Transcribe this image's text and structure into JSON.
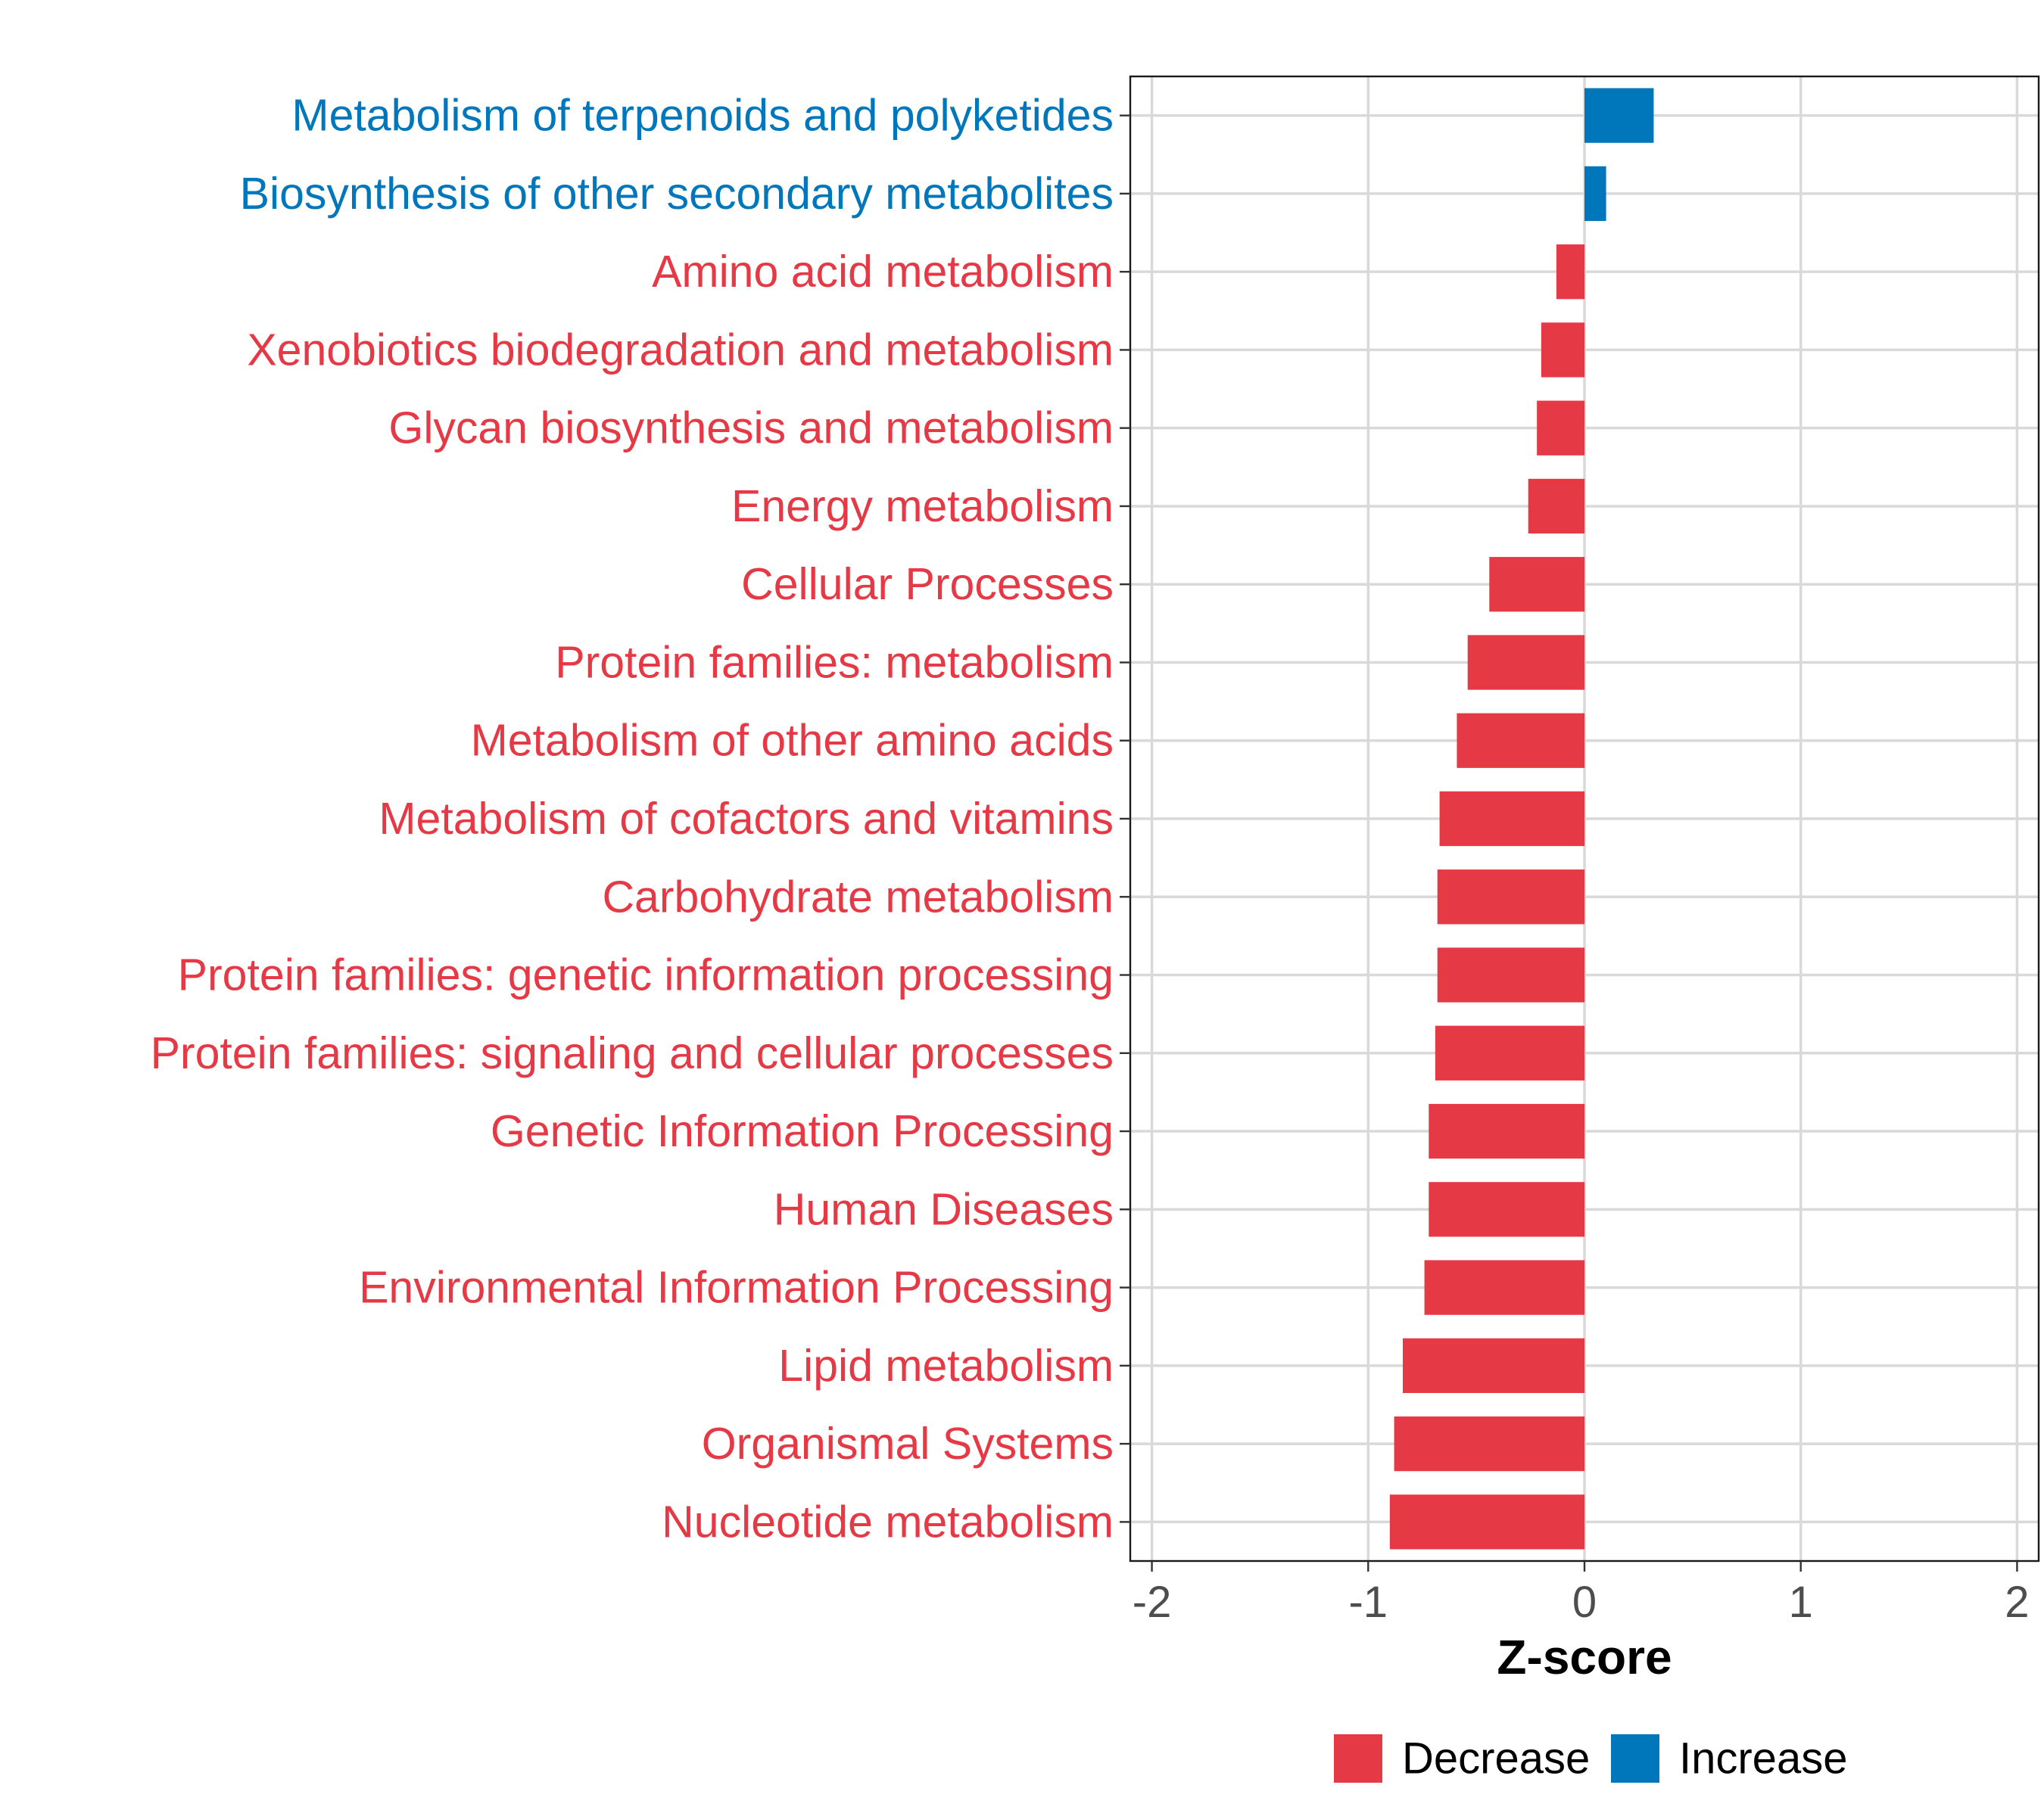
{
  "chart_data": {
    "type": "bar",
    "orientation": "horizontal",
    "title": "",
    "xlabel": "Z-score",
    "ylabel": "",
    "xlim": [
      -2.1,
      2.1
    ],
    "x_ticks": [
      -2,
      -1,
      0,
      1,
      2
    ],
    "x_tick_labels": [
      "-2",
      "-1",
      "0",
      "1",
      "2"
    ],
    "grid": true,
    "legend_position": "bottom",
    "colors": {
      "Decrease": "#E63946",
      "Increase": "#0077BB"
    },
    "legend": [
      {
        "label": "Decrease",
        "group": "Decrease"
      },
      {
        "label": "Increase",
        "group": "Increase"
      }
    ],
    "categories": [
      "Metabolism of terpenoids and polyketides",
      "Biosynthesis of other secondary metabolites",
      "Amino acid metabolism",
      "Xenobiotics biodegradation and metabolism",
      "Glycan biosynthesis and metabolism",
      "Energy metabolism",
      "Cellular Processes",
      "Protein families: metabolism",
      "Metabolism of other amino acids",
      "Metabolism of cofactors and vitamins",
      "Carbohydrate metabolism",
      "Protein families: genetic information processing",
      "Protein families: signaling and cellular processes",
      "Genetic Information Processing",
      "Human Diseases",
      "Environmental Information Processing",
      "Lipid metabolism",
      "Organismal Systems",
      "Nucleotide metabolism"
    ],
    "values": [
      0.32,
      0.1,
      -0.13,
      -0.2,
      -0.22,
      -0.26,
      -0.44,
      -0.54,
      -0.59,
      -0.67,
      -0.68,
      -0.68,
      -0.69,
      -0.72,
      -0.72,
      -0.74,
      -0.84,
      -0.88,
      -0.9
    ],
    "groups": [
      "Increase",
      "Increase",
      "Decrease",
      "Decrease",
      "Decrease",
      "Decrease",
      "Decrease",
      "Decrease",
      "Decrease",
      "Decrease",
      "Decrease",
      "Decrease",
      "Decrease",
      "Decrease",
      "Decrease",
      "Decrease",
      "Decrease",
      "Decrease",
      "Decrease"
    ]
  }
}
